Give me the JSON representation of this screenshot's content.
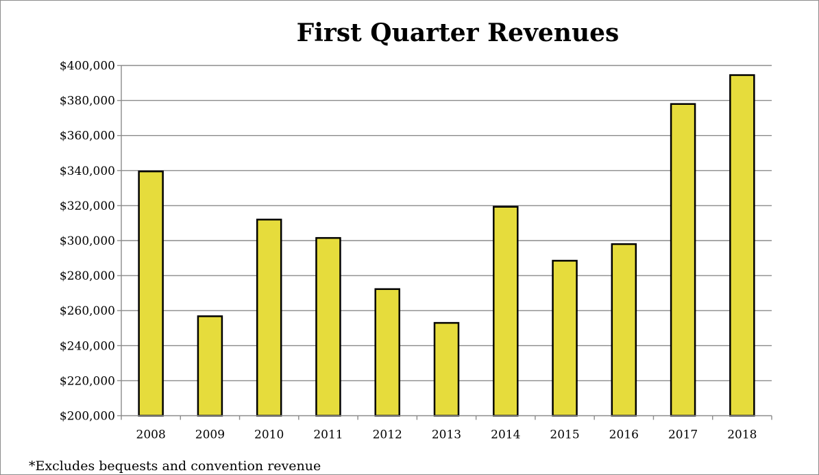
{
  "chart_data": {
    "type": "bar",
    "title": "First Quarter Revenues",
    "xlabel": "",
    "ylabel": "",
    "categories": [
      "2008",
      "2009",
      "2010",
      "2011",
      "2012",
      "2013",
      "2014",
      "2015",
      "2016",
      "2017",
      "2018"
    ],
    "values": [
      339500,
      256800,
      312000,
      301500,
      272300,
      253000,
      319300,
      288500,
      298000,
      378000,
      394500
    ],
    "ylim": [
      200000,
      400000
    ],
    "yticks": [
      200000,
      220000,
      240000,
      260000,
      280000,
      300000,
      320000,
      340000,
      360000,
      380000,
      400000
    ],
    "ytick_labels": [
      "$200,000",
      "$220,000",
      "$240,000",
      "$260,000",
      "$280,000",
      "$300,000",
      "$320,000",
      "$340,000",
      "$360,000",
      "$380,000",
      "$400,000"
    ],
    "grid": true,
    "legend": "none",
    "bar_color": "#e6dc3c",
    "bar_edge_color": "#000000",
    "footnote": "*Excludes bequests and convention revenue"
  }
}
